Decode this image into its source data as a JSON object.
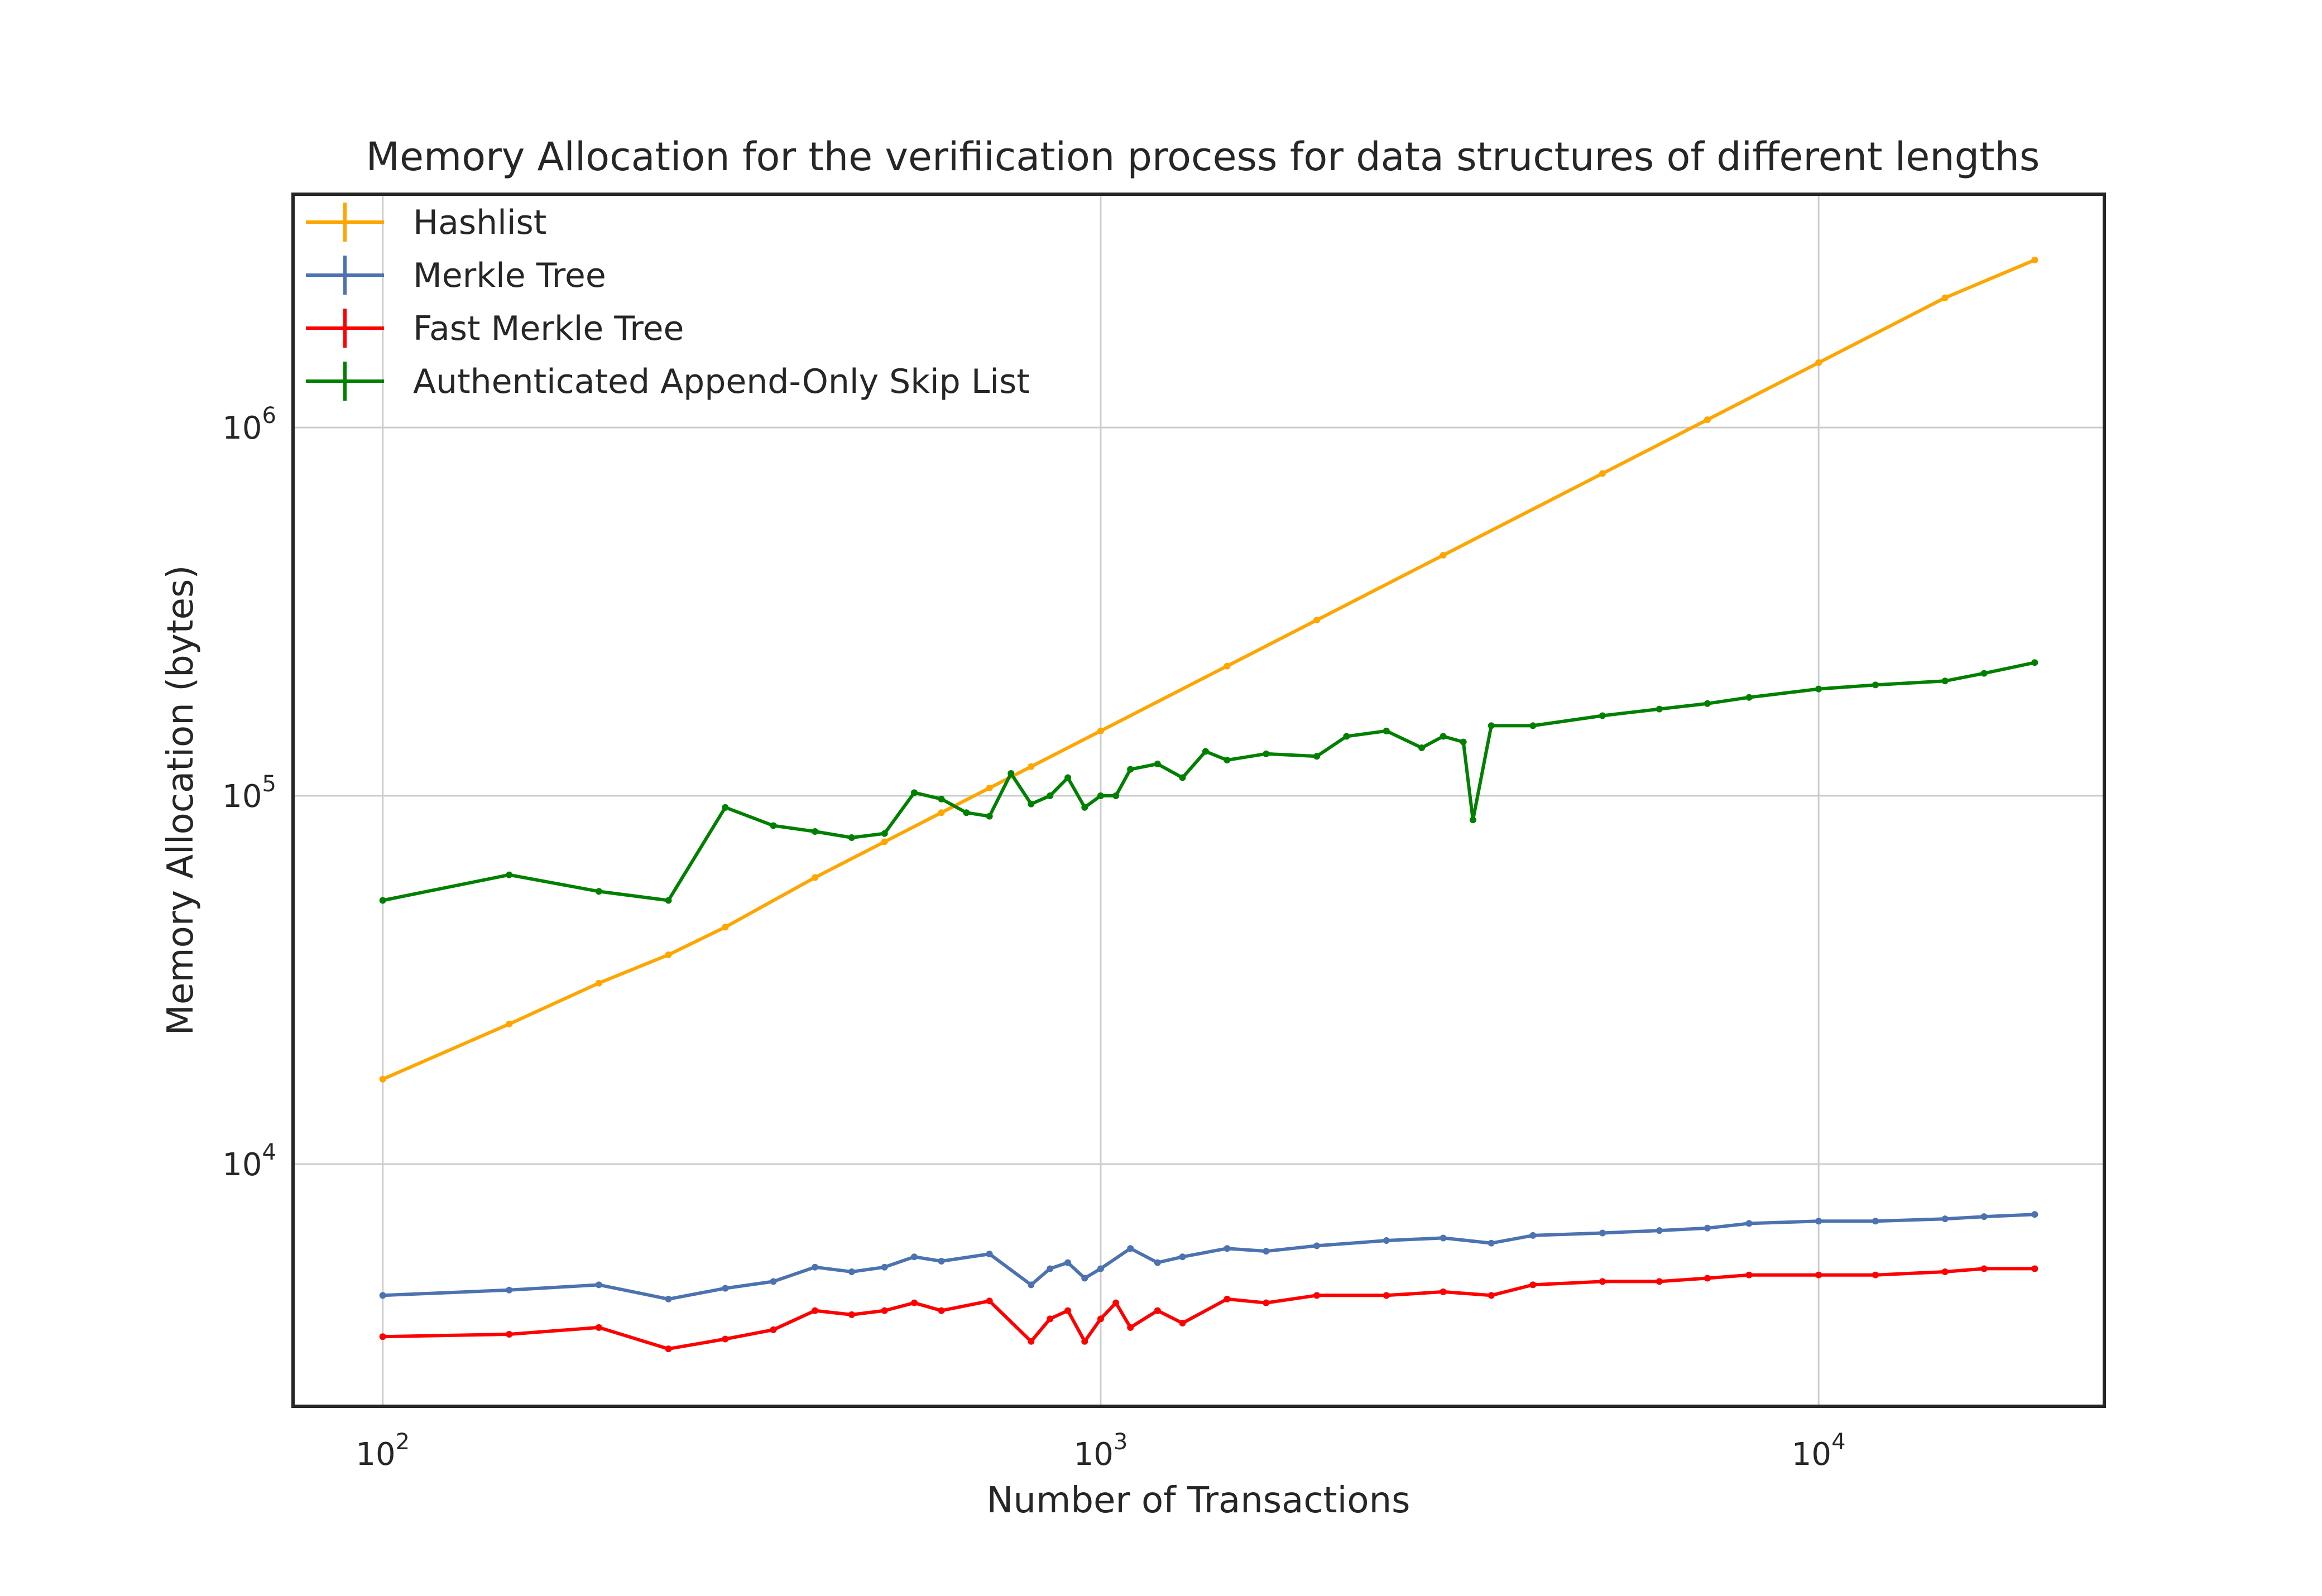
{
  "chart_data": {
    "type": "line",
    "title": "Memory Allocation for the verifiication process for data structures of different lengths",
    "xlabel": "Number of Transactions",
    "ylabel": "Memory Allocation (bytes)",
    "x_scale": "log",
    "y_scale": "log",
    "xlim": [
      75,
      25000
    ],
    "ylim": [
      2200,
      4300000
    ],
    "grid": true,
    "legend_position": "top-left",
    "x_ticks": [
      {
        "base": "10",
        "exp": "2",
        "value": 100
      },
      {
        "base": "10",
        "exp": "3",
        "value": 1000
      },
      {
        "base": "10",
        "exp": "4",
        "value": 10000
      }
    ],
    "y_ticks": [
      {
        "base": "10",
        "exp": "4",
        "value": 10000
      },
      {
        "base": "10",
        "exp": "5",
        "value": 100000
      },
      {
        "base": "10",
        "exp": "6",
        "value": 1000000
      }
    ],
    "series": [
      {
        "name": "Hashlist",
        "color": "#FFA500",
        "x": [
          100,
          150,
          200,
          250,
          300,
          400,
          500,
          600,
          700,
          800,
          1000,
          1500,
          2000,
          3000,
          5000,
          7000,
          10000,
          15000,
          20000
        ],
        "y": [
          17000,
          24000,
          31000,
          37000,
          44000,
          60000,
          75000,
          90000,
          105000,
          120000,
          150000,
          225000,
          300000,
          450000,
          750000,
          1050000,
          1500000,
          2250000,
          2850000
        ]
      },
      {
        "name": "Merkle Tree",
        "color": "#4C72B0",
        "x": [
          100,
          150,
          200,
          250,
          300,
          350,
          400,
          450,
          500,
          550,
          600,
          700,
          800,
          850,
          900,
          950,
          1000,
          1100,
          1200,
          1300,
          1500,
          1700,
          2000,
          2500,
          3000,
          3500,
          4000,
          5000,
          6000,
          7000,
          8000,
          10000,
          12000,
          15000,
          17000,
          20000
        ],
        "y": [
          4400,
          4550,
          4700,
          4300,
          4600,
          4800,
          5250,
          5100,
          5250,
          5600,
          5450,
          5700,
          4700,
          5200,
          5400,
          4900,
          5200,
          5900,
          5400,
          5600,
          5900,
          5800,
          6000,
          6200,
          6300,
          6100,
          6400,
          6500,
          6600,
          6700,
          6900,
          7000,
          7000,
          7100,
          7200,
          7300
        ]
      },
      {
        "name": "Fast Merkle Tree",
        "color": "#FF0000",
        "x": [
          100,
          150,
          200,
          250,
          300,
          350,
          400,
          450,
          500,
          550,
          600,
          700,
          800,
          850,
          900,
          950,
          1000,
          1050,
          1100,
          1200,
          1300,
          1500,
          1700,
          2000,
          2500,
          3000,
          3500,
          4000,
          5000,
          6000,
          7000,
          8000,
          10000,
          12000,
          15000,
          17000,
          20000
        ],
        "y": [
          3400,
          3450,
          3600,
          3150,
          3350,
          3550,
          4000,
          3900,
          4000,
          4200,
          4000,
          4250,
          3300,
          3800,
          4000,
          3300,
          3800,
          4200,
          3600,
          4000,
          3700,
          4300,
          4200,
          4400,
          4400,
          4500,
          4400,
          4700,
          4800,
          4800,
          4900,
          5000,
          5000,
          5000,
          5100,
          5200,
          5200
        ]
      },
      {
        "name": "Authenticated Append-Only Skip List",
        "color": "#008000",
        "x": [
          100,
          150,
          200,
          250,
          300,
          350,
          400,
          450,
          500,
          550,
          600,
          650,
          700,
          750,
          800,
          850,
          900,
          950,
          1000,
          1050,
          1100,
          1200,
          1300,
          1400,
          1500,
          1700,
          2000,
          2200,
          2500,
          2800,
          3000,
          3200,
          3300,
          3500,
          4000,
          5000,
          6000,
          7000,
          8000,
          10000,
          12000,
          15000,
          17000,
          20000
        ],
        "y": [
          52000,
          61000,
          55000,
          52000,
          93000,
          83000,
          80000,
          77000,
          79000,
          102000,
          98000,
          90000,
          88000,
          115000,
          95000,
          100000,
          112000,
          93000,
          100000,
          100000,
          118000,
          122000,
          112000,
          132000,
          125000,
          130000,
          128000,
          145000,
          150000,
          135000,
          145000,
          140000,
          86000,
          155000,
          155000,
          165000,
          172000,
          178000,
          185000,
          195000,
          200000,
          205000,
          215000,
          230000
        ]
      }
    ]
  }
}
